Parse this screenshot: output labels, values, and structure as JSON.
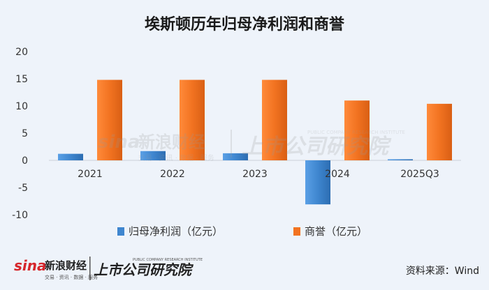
{
  "chart_data": {
    "type": "bar",
    "title": "埃斯顿历年归母净利润和商誉",
    "categories": [
      "2021",
      "2022",
      "2023",
      "2024",
      "2025Q3"
    ],
    "series": [
      {
        "name": "归母净利润（亿元）",
        "color": "#3f86cf",
        "values": [
          1.2,
          1.7,
          1.3,
          -8.1,
          0.2
        ]
      },
      {
        "name": "商誉（亿元）",
        "color": "#f27321",
        "values": [
          14.8,
          14.8,
          14.8,
          11.0,
          10.4
        ]
      }
    ],
    "y_ticks": [
      "20",
      "15",
      "10",
      "5",
      "0",
      "-5",
      "-10"
    ],
    "ylim": [
      -10,
      20
    ],
    "grid": false,
    "legend_position": "bottom"
  },
  "source": "资料来源：Wind",
  "watermark": {
    "sina_logo": "sina",
    "sina_name": "新浪财经",
    "sina_sub": "交易 · 资讯 · 数据 · 服务",
    "research_name": "上市公司研究院",
    "research_sub": "PUBLIC COMPANY RESEARCH INSTITUTE"
  }
}
